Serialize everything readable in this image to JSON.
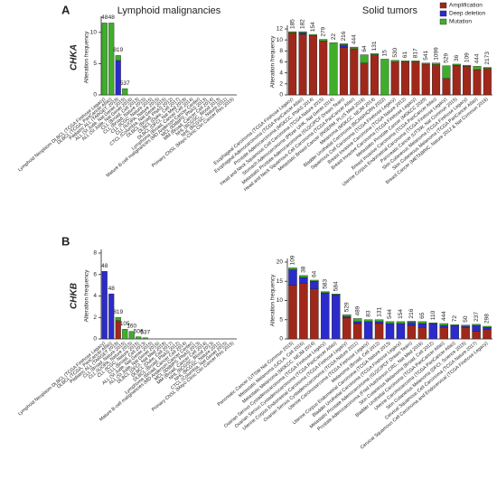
{
  "panels": [
    "A",
    "B"
  ],
  "chart_data": [
    {
      "type": "bar",
      "stacked": true,
      "title": "Lymphoid malignancies",
      "gene": "CHKA",
      "y_label": "Alteration frequency",
      "categories": [
        "Lymphoid Neoplasm DLBCL (TCGA Firehose Legacy)",
        "DLBCL (TCGA, PanCancer Atlas)",
        "Pediatric ALL (TARGET, 2018)",
        "ALL (St Jude, Nat Genet 2015)",
        "ALL (St Jude, Nat Genet 2016)",
        "CLL (Broad, Cell 2013)",
        "CLL (Broad, Nature 2015)",
        "CLL (ICGC, Nature 2015)",
        "CLL (IUOPA, Nature 2015)",
        "CTCL (Columbia, Nat Genet 2015)",
        "DLBCL (Broad, PNAS 2012)",
        "DLBCL (Duke, Cell 2017)",
        "DLBCL (DFCI, Nat Med 2018)",
        "Lymphoma (Broad, Cancer Cell 2014)",
        "Mature B-cell malignancies (MD Anderson Cancer Center)",
        "MCL (IDIBIPS, PNAS 2013)",
        "MM (Broad, Cancer Cell 2014)",
        "NHL (BCGSC, Blood 2013)",
        "NHL (BCGSC, Nature 2011)",
        "Primary CNSL (Mayo Clinic Clin Cancer Res 2015)"
      ],
      "series": [
        {
          "name": "Amplification",
          "color": "#a0281a",
          "values": [
            0,
            0,
            0,
            0,
            0,
            0,
            0,
            0,
            0,
            0,
            0,
            0,
            0,
            0,
            0,
            0,
            0,
            0,
            0,
            0
          ]
        },
        {
          "name": "Deep deletion",
          "color": "#2b2bcc",
          "values": [
            0,
            0,
            5.5,
            0,
            0,
            0,
            0,
            0,
            0,
            0,
            0,
            0,
            0,
            0,
            0,
            0,
            0,
            0,
            0,
            0
          ]
        },
        {
          "name": "Mutation",
          "color": "#3fae2a",
          "values": [
            11.5,
            11.5,
            0.8,
            1,
            0,
            0,
            0,
            0,
            0,
            0,
            0,
            0,
            0,
            0,
            0,
            0,
            0,
            0,
            0,
            0
          ]
        }
      ],
      "sample_sizes": [
        "48",
        "48",
        "819",
        "537",
        null,
        null,
        null,
        null,
        null,
        null,
        null,
        null,
        null,
        null,
        null,
        null,
        null,
        null,
        null,
        null
      ],
      "ylim": [
        0,
        12
      ],
      "yticks": [
        0,
        5,
        10
      ]
    },
    {
      "type": "bar",
      "stacked": true,
      "title": "Solid tumors",
      "y_label": "Alteration frequency",
      "legend": "top-right",
      "categories": [
        "Esophageal Carcinoma (TCGA Firehose Legacy)",
        "Esophageal Adenocarcinoma (TCGA PanCancer Atlas)",
        "Prostate Adenocarcinoma (MSKCC, PNAS 2014)",
        "Head and Neck Squamous Cell Carcinoma (TCGA Nature 2015)",
        "Stomach Adenocarcinoma (Pfizer UHK, Nat Genet 2014)",
        "Metastatic Prostate Adenocarcinoma (SU2C/PCF Dream Team)",
        "Head and Neck Squamous Cell Carcinoma (TCGA PanCancer Atlas)",
        "Metastatic Breast Cancer (INSERM, PLoS Med 2016)",
        "Melanoma (MSKCC, NEJM 2014)",
        "Bladder Urothelial Carcinoma (BCAN/HCRN 2022)",
        "Squamous Cell Carcinoma (TCGA Firehose Legacy)",
        "Breast Invasive Carcinoma (TCGA Nature 2012)",
        "Breast Invasive Carcinoma (TCGA Firehose Legacy)",
        "Metastatic Prostate Cancer (MSKCC 2020)",
        "Breast Invasive Carcinoma (TCGA PanCancer Atlas)",
        "Uterine Corpus Endometrial Carcinoma (TCGA Firehose Legacy)",
        "Pancreatic Cancer (UTSW, Nat Commun 2015)",
        "Skin Cutaneous Melanoma (TCGA Firehose Legacy)",
        "Skin Cutaneous Melanoma (TCGA PanCancer Atlas)",
        "Breast Cancer (METABRIC, Nature 2012 & Nat Commun 2016)"
      ],
      "series": [
        {
          "name": "Amplification",
          "color": "#a0281a",
          "values": [
            11.3,
            11.0,
            10.8,
            9.8,
            0,
            8.6,
            8.4,
            5.8,
            7.3,
            0,
            6.0,
            6.0,
            6.0,
            5.6,
            5.5,
            3.0,
            5.4,
            5.2,
            4.6,
            4.8
          ]
        },
        {
          "name": "Deep deletion",
          "color": "#2b2bcc",
          "values": [
            0,
            0.3,
            0,
            0,
            0,
            0.5,
            0,
            0,
            0,
            0,
            0,
            0,
            0,
            0,
            0,
            0,
            0,
            0,
            0,
            0
          ]
        },
        {
          "name": "Mutation",
          "color": "#3fae2a",
          "values": [
            0.2,
            0.2,
            0.2,
            0.3,
            9.5,
            0.2,
            0.3,
            1.5,
            0.2,
            6.5,
            0.3,
            0.2,
            0.2,
            0.2,
            0.3,
            2.3,
            0.2,
            0.2,
            0.6,
            0.2
          ]
        }
      ],
      "sample_sizes": [
        "185",
        "182",
        "154",
        "279",
        "22",
        "216",
        "444",
        "64",
        "131",
        "15",
        "530",
        "61",
        "817",
        "541",
        "1099",
        "529",
        "36",
        "109",
        "444",
        "2173"
      ],
      "ylim": [
        0,
        12
      ],
      "yticks": [
        0,
        2,
        4,
        6,
        8,
        10,
        12
      ]
    },
    {
      "type": "bar",
      "stacked": true,
      "gene": "CHKB",
      "y_label": "Alteration frequency",
      "categories": [
        "Lymphoid Neoplasm DLBCL (TCGA Firehose Legacy)",
        "DLBCL (TCGA, PanCancer Atlas)",
        "Pediatric ALL (TARGET 2018)",
        "CLL (Broad, Nature 2015)",
        "CLL (IUOPA, Nature 2015)",
        "CLL (ICGC, Nature 2015)",
        "CLL (Broad, Cell 2013)",
        "ALL (St Jude, Nat Genet 2015)",
        "ALL (St Jude, Nat Genet 2016)",
        "DLBCL (DFCI, Nat Med 2018)",
        "DLBCL (Duke, Cell 2017)",
        "DLBCL (Broad, PNAS 2012)",
        "Lymphoma (Broad, Cancer Cell 2014)",
        "Mature B-cell malignancies (MD Anderson Cancer Center)",
        "MCL (IDIBIPS, PNAS 2013)",
        "MM (Broad, Cancer Cell 2014)",
        "NHL (BCGSC, Blood 2013)",
        "NHL (BCGSC, Nature 2011)",
        "CTCL (Columbia, Nat Genet 2015)",
        "Primary CNSL (Mayo Clinic Clin Cancer Res 2015)"
      ],
      "series": [
        {
          "name": "Amplification",
          "color": "#a0281a",
          "values": [
            0,
            0,
            1.7,
            0,
            0,
            0,
            0,
            0,
            0,
            0,
            0,
            0,
            0,
            0,
            0,
            0,
            0,
            0,
            0,
            0
          ]
        },
        {
          "name": "Deep deletion",
          "color": "#2b2bcc",
          "values": [
            6.3,
            4.2,
            0,
            0,
            0,
            0,
            0,
            0,
            0,
            0,
            0,
            0,
            0,
            0,
            0,
            0,
            0,
            0,
            0,
            0
          ]
        },
        {
          "name": "Mutation",
          "color": "#3fae2a",
          "values": [
            0,
            0,
            0.3,
            0.9,
            0.7,
            0.2,
            0.1,
            0,
            0,
            0,
            0,
            0,
            0,
            0,
            0,
            0,
            0,
            0,
            0,
            0
          ]
        }
      ],
      "sample_sizes": [
        "48",
        "48",
        "819",
        "105",
        "160",
        "506",
        "537",
        null,
        null,
        null,
        null,
        null,
        null,
        null,
        null,
        null,
        null,
        null,
        null,
        null
      ],
      "ylim": [
        0,
        8
      ],
      "yticks": [
        0,
        2,
        4,
        6,
        8
      ]
    },
    {
      "type": "bar",
      "stacked": true,
      "y_label": "Alteration frequency",
      "categories": [
        "Pancreatic Cancer (UTSW Nat Commun 2015)",
        "Metastatic Melanoma (UCLA, Cell 2016)",
        "Metastatic Melanoma (MSKCC, NEJM 2014)",
        "Ovarian Serous Cystadenocarcinoma (TCGA Firehose Legacy)",
        "Ovarian Serous Cystadenocarcinoma (TCGA PanCancer Atlas)",
        "Uterine Corpus Endometrial Carcinoma (TCGA Firehose Legacy)",
        "Ovarian Serous Cystadenocarcinoma (TCGA Nature 2011)",
        "Uterine Carcinosarcoma (TCGA Firehose Legacy)",
        "Melanoma (Broad, Cell 2012)",
        "Uterine Corpus Endometrial Carcinoma (TCGA Nature 2013)",
        "Bladder Urothelial Carcinoma (TCGA Firehose Legacy)",
        "Metastatic Prostate Adenocarcinoma (SU2C/PCF Dream Team)",
        "Prostate Adenocarcinoma (Fred Hutchinson CRC, Nat Med 2016)",
        "Skin Cutaneous Melanoma (Broad, Cell 2012)",
        "Bladder Urothelial Carcinoma (TCGA PanCancer Atlas)",
        "Uterine Carcinosarcoma (TCGA PanCancer Atlas)",
        "Skin Cutaneous Melanoma (DFCI, Science 2015)",
        "Cervical Squamous Cell Carcinoma (TCGA Nature 2017)",
        "Cervical Squamous Cell Carcinoma and Endocervical (TCGA Firehose Legacy)"
      ],
      "series": [
        {
          "name": "Amplification",
          "color": "#a0281a",
          "values": [
            14,
            14.5,
            13,
            0,
            0,
            5.5,
            4,
            0,
            4,
            0,
            0,
            3.5,
            3,
            0,
            3,
            0,
            3,
            2,
            2.5
          ]
        },
        {
          "name": "Deep deletion",
          "color": "#2b2bcc",
          "values": [
            4,
            1.5,
            2,
            12,
            11.5,
            0.3,
            0.5,
            4.5,
            0.5,
            4,
            4,
            0.8,
            1,
            4,
            0.5,
            3.5,
            0.3,
            1.5,
            0.5
          ]
        },
        {
          "name": "Mutation",
          "color": "#3fae2a",
          "values": [
            0.5,
            0.5,
            0.3,
            0.3,
            0.2,
            0.5,
            0.8,
            0.5,
            0.5,
            0.5,
            0.5,
            0.3,
            0.5,
            0.2,
            0.5,
            0.2,
            0.3,
            0.3,
            0.3
          ]
        }
      ],
      "sample_sizes": [
        "109",
        "38",
        "64",
        "583",
        "584",
        "529",
        "489",
        "83",
        "131",
        "544",
        "154",
        "216",
        "65",
        "110",
        "444",
        "72",
        "50",
        "237",
        "298"
      ],
      "ylim": [
        0,
        20
      ],
      "yticks": [
        0,
        5,
        10,
        15,
        20
      ]
    }
  ]
}
